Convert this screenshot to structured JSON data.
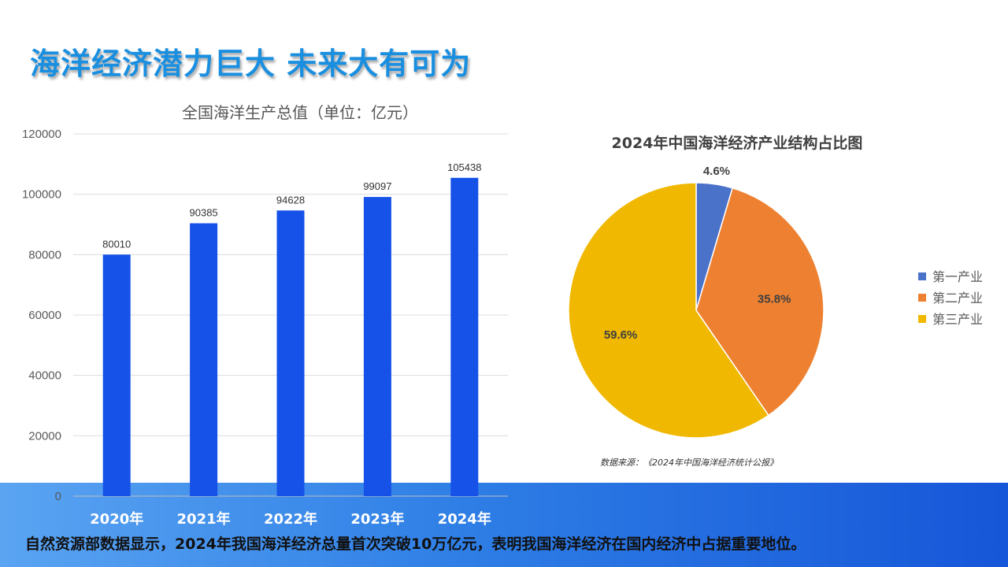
{
  "slide": {
    "title": "海洋经济潜力巨大  未来大有可为",
    "footer": "自然资源部数据显示，2024年我国海洋经济总量首次突破10万亿元，表明我国海洋经济在国内经济中占据重要地位。"
  },
  "colors": {
    "title": "#1a8fe0",
    "bar": "#1652e8",
    "pie_primary": "#4a72c8",
    "pie_secondary": "#ee8131",
    "pie_tertiary": "#f0b800"
  },
  "chart_data": [
    {
      "type": "bar",
      "title": "全国海洋生产总值（单位：亿元）",
      "categories": [
        "2020年",
        "2021年",
        "2022年",
        "2023年",
        "2024年"
      ],
      "values": [
        80010,
        90385,
        94628,
        99097,
        105438
      ],
      "ylim": [
        0,
        120000
      ],
      "yticks": [
        "0",
        "20000",
        "40000",
        "60000",
        "80000",
        "100000",
        "120000"
      ],
      "grid": true
    },
    {
      "type": "pie",
      "title": "2024年中国海洋经济产业结构占比图",
      "labels": [
        "第一产业",
        "第二产业",
        "第三产业"
      ],
      "values": [
        4.6,
        35.8,
        59.6
      ],
      "value_labels": [
        "4.6%",
        "35.8%",
        "59.6%"
      ],
      "legend": "right",
      "source": "数据来源：《2024年中国海洋经济统计公报》"
    }
  ]
}
